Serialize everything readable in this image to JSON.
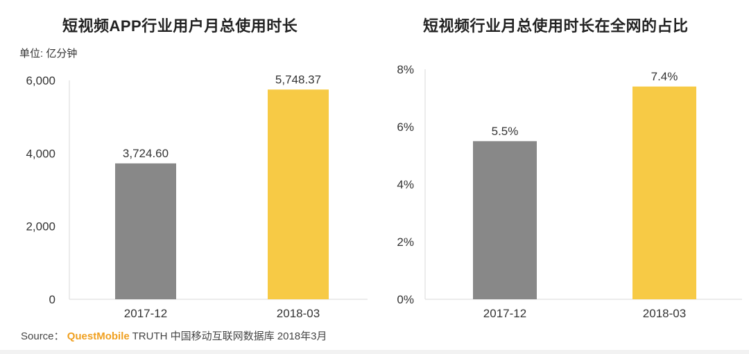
{
  "chart_data": [
    {
      "type": "bar",
      "title": "短视频APP行业用户月总使用时长",
      "unit_label": "单位: 亿分钟",
      "categories": [
        "2017-12",
        "2018-03"
      ],
      "values": [
        3724.6,
        5748.37
      ],
      "value_labels": [
        "3,724.60",
        "5,748.37"
      ],
      "yticks": [
        "6,000",
        "4,000",
        "2,000",
        "0"
      ],
      "ylim": [
        0,
        6000
      ],
      "colors": [
        "#888888",
        "#f7ca45"
      ],
      "grid": false
    },
    {
      "type": "bar",
      "title": "短视频行业月总使用时长在全网的占比",
      "categories": [
        "2017-12",
        "2018-03"
      ],
      "values": [
        5.5,
        7.4
      ],
      "value_labels": [
        "5.5%",
        "7.4%"
      ],
      "yticks": [
        "8%",
        "6%",
        "4%",
        "2%",
        "0%"
      ],
      "ylim": [
        0,
        8
      ],
      "colors": [
        "#888888",
        "#f7ca45"
      ],
      "grid": false
    }
  ],
  "source": {
    "prefix": "Source：",
    "brand": "QuestMobile",
    "text": "TRUTH 中国移动互联网数据库 2018年3月"
  }
}
